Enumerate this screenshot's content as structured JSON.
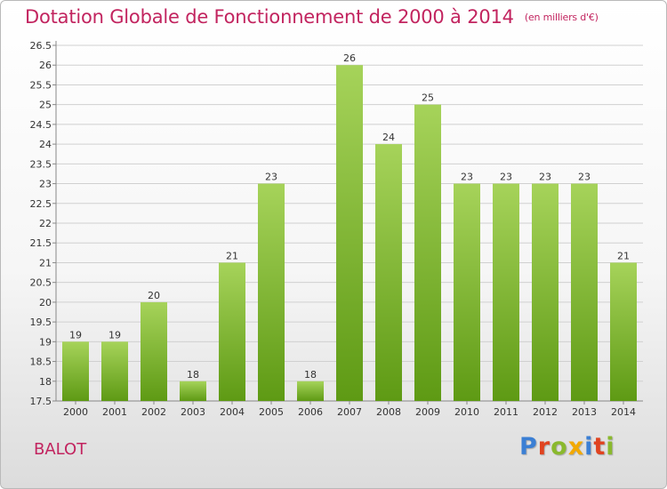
{
  "header": {
    "title": "Dotation Globale de Fonctionnement de 2000 à 2014",
    "subtitle": "(en milliers d'€)"
  },
  "footer": {
    "commune": "BALOT",
    "logo": "Proxiti",
    "logo_colors": [
      "#3b7fd4",
      "#e0431f",
      "#8ab92d",
      "#f2a900",
      "#3b7fd4",
      "#e0431f",
      "#8ab92d"
    ]
  },
  "colors": {
    "title": "#c2245f",
    "bar_top": "#a6d35a",
    "bar_bottom": "#5e9a14",
    "grid": "#d0d0d0",
    "text": "#333333"
  },
  "chart_data": {
    "type": "bar",
    "categories": [
      "2000",
      "2001",
      "2002",
      "2003",
      "2004",
      "2005",
      "2006",
      "2007",
      "2008",
      "2009",
      "2010",
      "2011",
      "2012",
      "2013",
      "2014"
    ],
    "values": [
      19,
      19,
      20,
      18,
      21,
      23,
      18,
      26,
      24,
      25,
      23,
      23,
      23,
      23,
      21
    ],
    "value_labels": [
      "19",
      "19",
      "20",
      "18",
      "21",
      "23",
      "18",
      "26",
      "24",
      "25",
      "23",
      "23",
      "23",
      "23",
      "21"
    ],
    "ylim": [
      17.5,
      26.5
    ],
    "yticks": [
      "17.5",
      "18",
      "18.5",
      "19",
      "19.5",
      "20",
      "20.5",
      "21",
      "21.5",
      "22",
      "22.5",
      "23",
      "23.5",
      "24",
      "24.5",
      "25",
      "25.5",
      "26",
      "26.5"
    ],
    "grid": true
  }
}
